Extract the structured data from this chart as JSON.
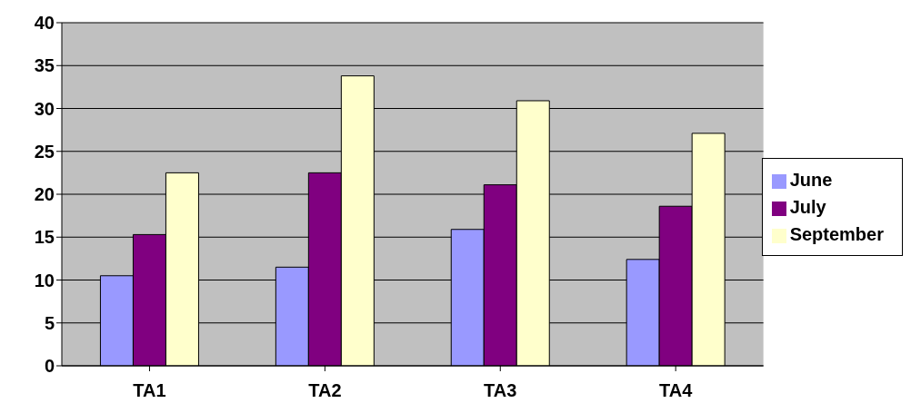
{
  "chart_data": {
    "type": "bar",
    "categories": [
      "TA1",
      "TA2",
      "TA3",
      "TA4"
    ],
    "series": [
      {
        "name": "June",
        "color": "#9999ff",
        "values": [
          10.5,
          11.5,
          15.9,
          12.4
        ]
      },
      {
        "name": "July",
        "color": "#800080",
        "values": [
          15.3,
          22.5,
          21.1,
          18.6
        ]
      },
      {
        "name": "September",
        "color": "#ffffcc",
        "values": [
          22.5,
          33.8,
          30.9,
          27.1
        ]
      }
    ],
    "ylim": [
      0,
      40
    ],
    "yticks": [
      0,
      5,
      10,
      15,
      20,
      25,
      30,
      35,
      40
    ],
    "grid": "y",
    "legend": "right"
  }
}
